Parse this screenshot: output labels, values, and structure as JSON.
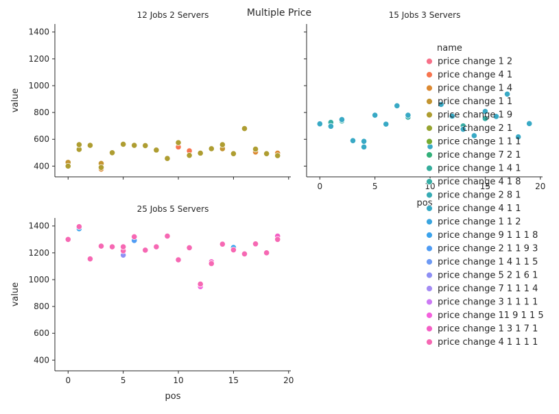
{
  "chart_data": {
    "type": "scatter",
    "title": "Multiple Price",
    "xlabel": "pos",
    "ylabel": "value",
    "xlim": [
      -1.2,
      20.2
    ],
    "ylim": [
      320,
      1460
    ],
    "x_ticks": [
      0,
      5,
      10,
      15,
      20
    ],
    "y_ticks": [
      400,
      600,
      800,
      1000,
      1200,
      1400
    ],
    "legend": {
      "title": "name",
      "placement": "right",
      "entries": [
        {
          "label": "price change 1 2",
          "color": "#f77189"
        },
        {
          "label": "price change 4 1",
          "color": "#f7754f"
        },
        {
          "label": "price change 1 4",
          "color": "#dc8932"
        },
        {
          "label": "price change 1 1",
          "color": "#c39532"
        },
        {
          "label": "price change 1 9",
          "color": "#ae9d31"
        },
        {
          "label": "price change 2 1",
          "color": "#97a431"
        },
        {
          "label": "price change 1 1 1",
          "color": "#77ab31"
        },
        {
          "label": "price change 7 2 1",
          "color": "#33b07a"
        },
        {
          "label": "price change 1 4 1",
          "color": "#35ad9c"
        },
        {
          "label": "price change 4 1 8",
          "color": "#36ada4"
        },
        {
          "label": "price change 2 8 1",
          "color": "#37abb4"
        },
        {
          "label": "price change 4 1 1",
          "color": "#38a9c5"
        },
        {
          "label": "price change 1 1 2",
          "color": "#3aa5df"
        },
        {
          "label": "price change 9 1 1 1 8",
          "color": "#3ba3ec"
        },
        {
          "label": "price change 2 1 1 9 3",
          "color": "#4f9cf4"
        },
        {
          "label": "price change 1 4 1 1 5",
          "color": "#6e9af4"
        },
        {
          "label": "price change 5 2 1 6 1",
          "color": "#8e8ff4"
        },
        {
          "label": "price change 7 1 1 1 4",
          "color": "#a48cf4"
        },
        {
          "label": "price change 3 1 1 1 1",
          "color": "#cc7af4"
        },
        {
          "label": "price change 11 9 1 1 5",
          "color": "#f461dd"
        },
        {
          "label": "price change 1 3 1 7 1",
          "color": "#f45fc5"
        },
        {
          "label": "price change 4 1 1 1 1",
          "color": "#f668b3"
        }
      ]
    },
    "panels": [
      {
        "title": "12 Jobs 2 Servers",
        "series": [
          {
            "legend_index": 1,
            "x": [
              10,
              11
            ],
            "y": [
              543,
              514
            ]
          },
          {
            "legend_index": 2,
            "x": [
              3,
              17,
              19
            ],
            "y": [
              378,
              505,
              497
            ]
          },
          {
            "legend_index": 3,
            "x": [
              0,
              3,
              14
            ],
            "y": [
              428,
              420,
              530
            ]
          },
          {
            "legend_index": 4,
            "x": [
              0,
              1,
              1,
              2,
              3,
              4,
              5,
              6,
              7,
              8,
              9,
              10,
              11,
              12,
              13,
              14,
              15,
              16,
              17,
              18,
              19
            ],
            "y": [
              400,
              525,
              560,
              555,
              390,
              500,
              563,
              555,
              553,
              520,
              457,
              575,
              480,
              497,
              530,
              560,
              493,
              680,
              527,
              493,
              478
            ]
          }
        ]
      },
      {
        "title": "15 Jobs 3 Servers",
        "series": [
          {
            "legend_index": 9,
            "x": [
              1,
              2,
              8,
              13,
              15
            ],
            "y": [
              726,
              737,
              765,
              700,
              755
            ]
          },
          {
            "legend_index": 11,
            "x": [
              0,
              1,
              2,
              3,
              4,
              4,
              5,
              6,
              7,
              8,
              10,
              11,
              12,
              13,
              14,
              15,
              16,
              17,
              18,
              19
            ],
            "y": [
              715,
              697,
              747,
              590,
              543,
              585,
              780,
              713,
              850,
              780,
              545,
              860,
              773,
              675,
              627,
              808,
              770,
              937,
              618,
              717
            ]
          }
        ]
      },
      {
        "title": "25 Jobs 5 Servers",
        "series": [
          {
            "legend_index": 13,
            "x": [
              1,
              15
            ],
            "y": [
              1380,
              1240
            ]
          },
          {
            "legend_index": 14,
            "x": [
              6
            ],
            "y": [
              1292
            ]
          },
          {
            "legend_index": 16,
            "x": [
              5
            ],
            "y": [
              1183
            ]
          },
          {
            "legend_index": 19,
            "x": [
              12
            ],
            "y": [
              948
            ]
          },
          {
            "legend_index": 20,
            "x": [
              13,
              19
            ],
            "y": [
              1133,
              1325
            ]
          },
          {
            "legend_index": 21,
            "x": [
              0,
              1,
              2,
              3,
              4,
              5,
              5,
              6,
              7,
              8,
              9,
              10,
              11,
              12,
              13,
              14,
              15,
              16,
              17,
              18,
              19
            ],
            "y": [
              1300,
              1395,
              1155,
              1250,
              1245,
              1215,
              1245,
              1320,
              1220,
              1245,
              1325,
              1148,
              1238,
              967,
              1120,
              1265,
              1222,
              1192,
              1267,
              1200,
              1300
            ]
          }
        ]
      }
    ]
  }
}
